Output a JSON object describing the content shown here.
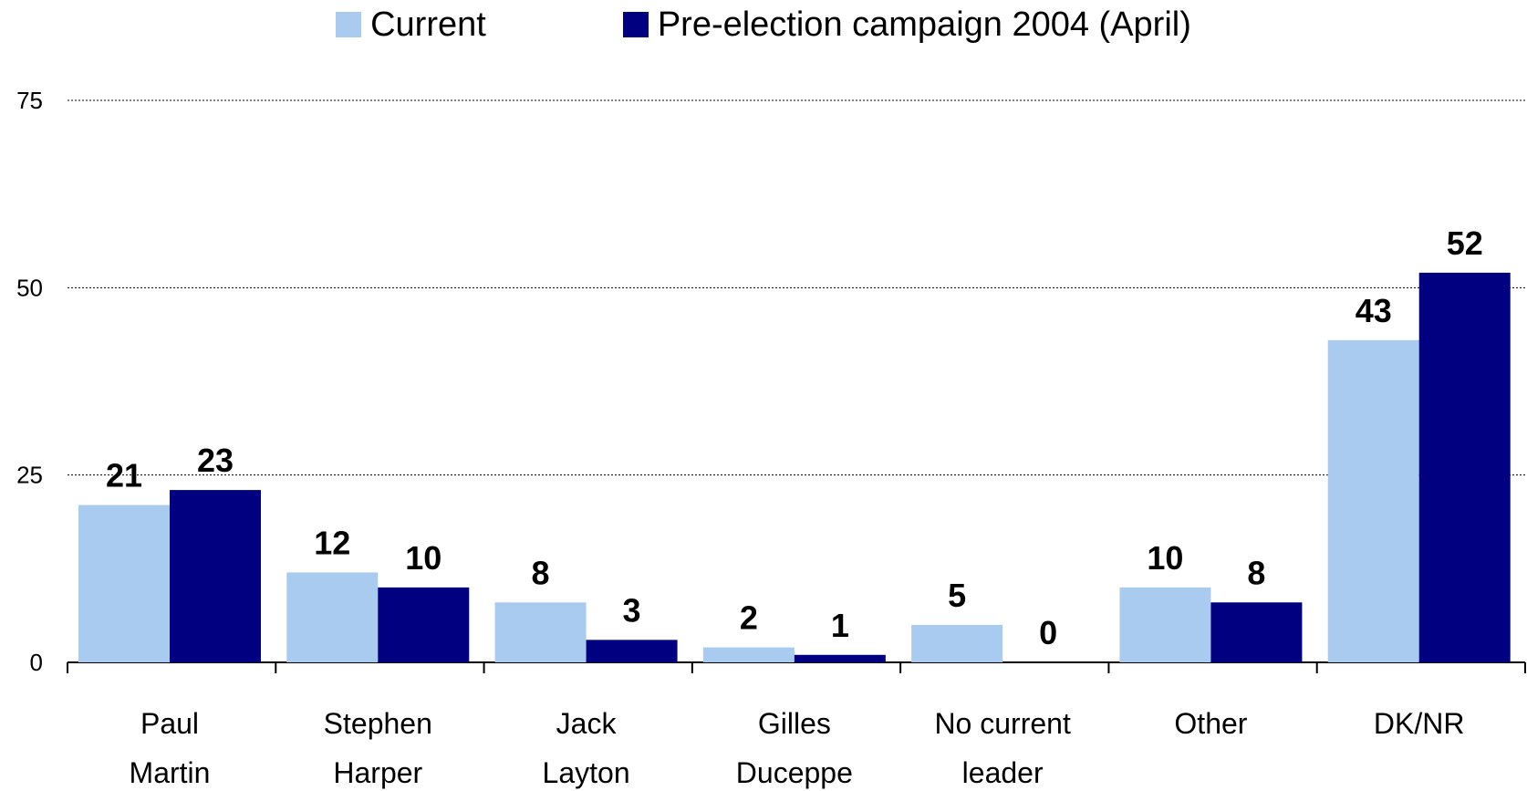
{
  "chart_data": {
    "type": "bar",
    "categories": [
      [
        "Paul",
        "Martin"
      ],
      [
        "Stephen",
        "Harper"
      ],
      [
        "Jack",
        "Layton"
      ],
      [
        "Gilles",
        "Duceppe"
      ],
      [
        "No current",
        "leader"
      ],
      [
        "Other"
      ],
      [
        "DK/NR"
      ]
    ],
    "series": [
      {
        "name": "Current",
        "values": [
          21,
          12,
          8,
          2,
          5,
          10,
          43
        ],
        "color": "#a9cbf0"
      },
      {
        "name": "Pre-election campaign 2004 (April)",
        "values": [
          23,
          10,
          3,
          1,
          0,
          8,
          52
        ],
        "color": "#000080"
      }
    ],
    "y_ticks": [
      0,
      25,
      50,
      75
    ],
    "ylim": [
      0,
      75
    ],
    "grid": true,
    "legend_position": "top-center"
  }
}
